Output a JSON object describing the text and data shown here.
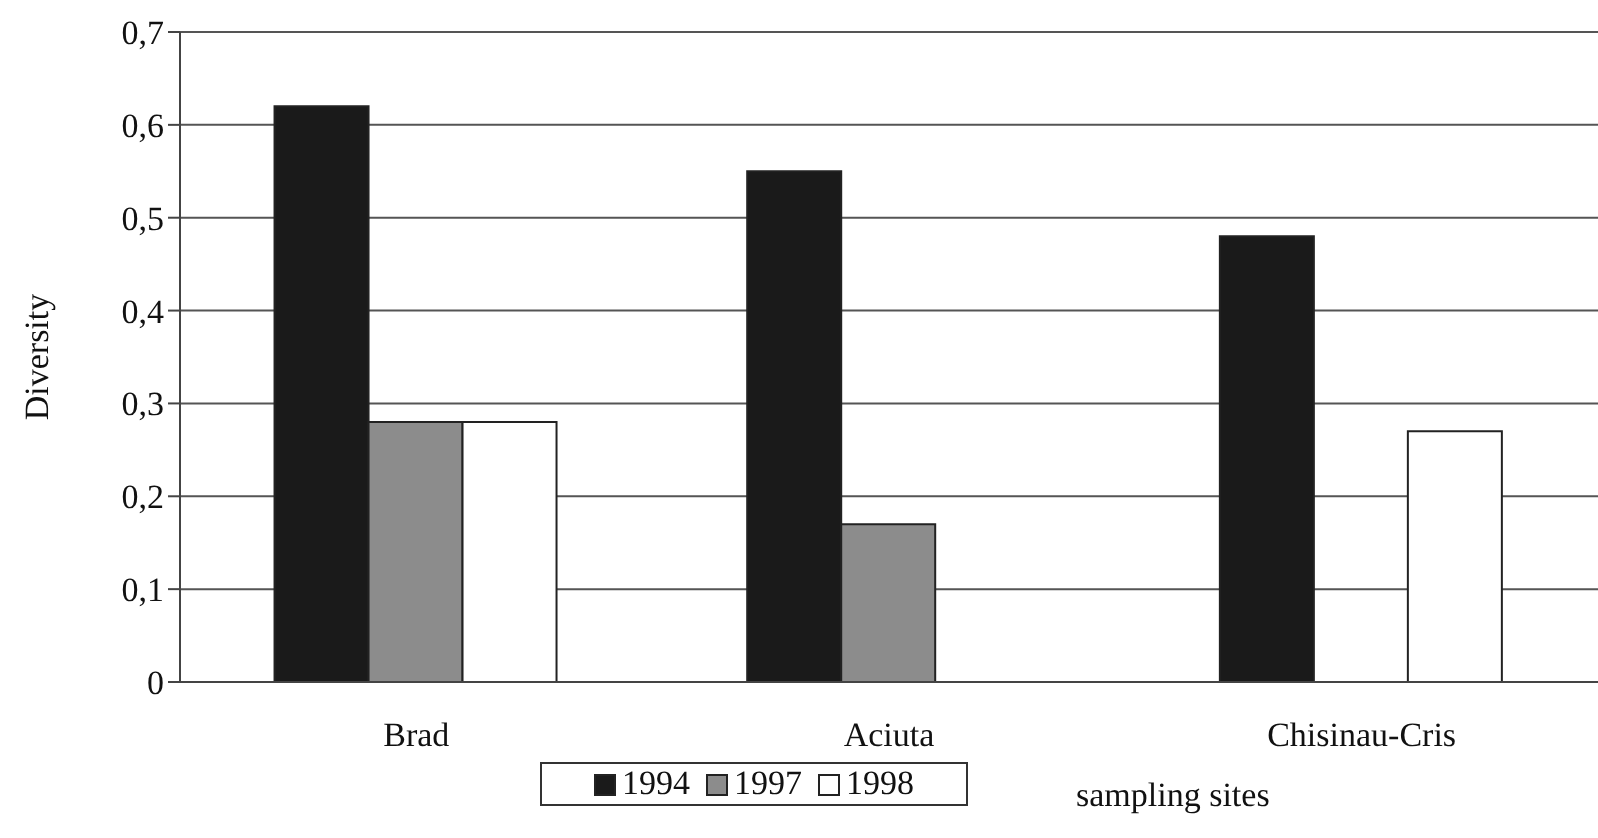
{
  "chart_data": {
    "type": "bar",
    "ylabel": "Diversity",
    "xlabel": "sampling sites",
    "categories": [
      "Brad",
      "Aciuta",
      "Chisinau-Cris"
    ],
    "series": [
      {
        "name": "1994",
        "color": "#1a1a1a",
        "values": [
          0.62,
          0.55,
          0.48
        ]
      },
      {
        "name": "1997",
        "color": "#8c8c8c",
        "values": [
          0.28,
          0.17,
          null
        ]
      },
      {
        "name": "1998",
        "color": "#ffffff",
        "values": [
          0.28,
          null,
          0.27
        ]
      }
    ],
    "ylim": [
      0,
      0.7
    ],
    "yticks": [
      {
        "value": 0,
        "label": "0"
      },
      {
        "value": 0.1,
        "label": "0,1"
      },
      {
        "value": 0.2,
        "label": "0,2"
      },
      {
        "value": 0.3,
        "label": "0,3"
      },
      {
        "value": 0.4,
        "label": "0,4"
      },
      {
        "value": 0.5,
        "label": "0,5"
      },
      {
        "value": 0.6,
        "label": "0,6"
      },
      {
        "value": 0.7,
        "label": "0,7"
      }
    ],
    "grid": "y",
    "legend": "bottom"
  }
}
